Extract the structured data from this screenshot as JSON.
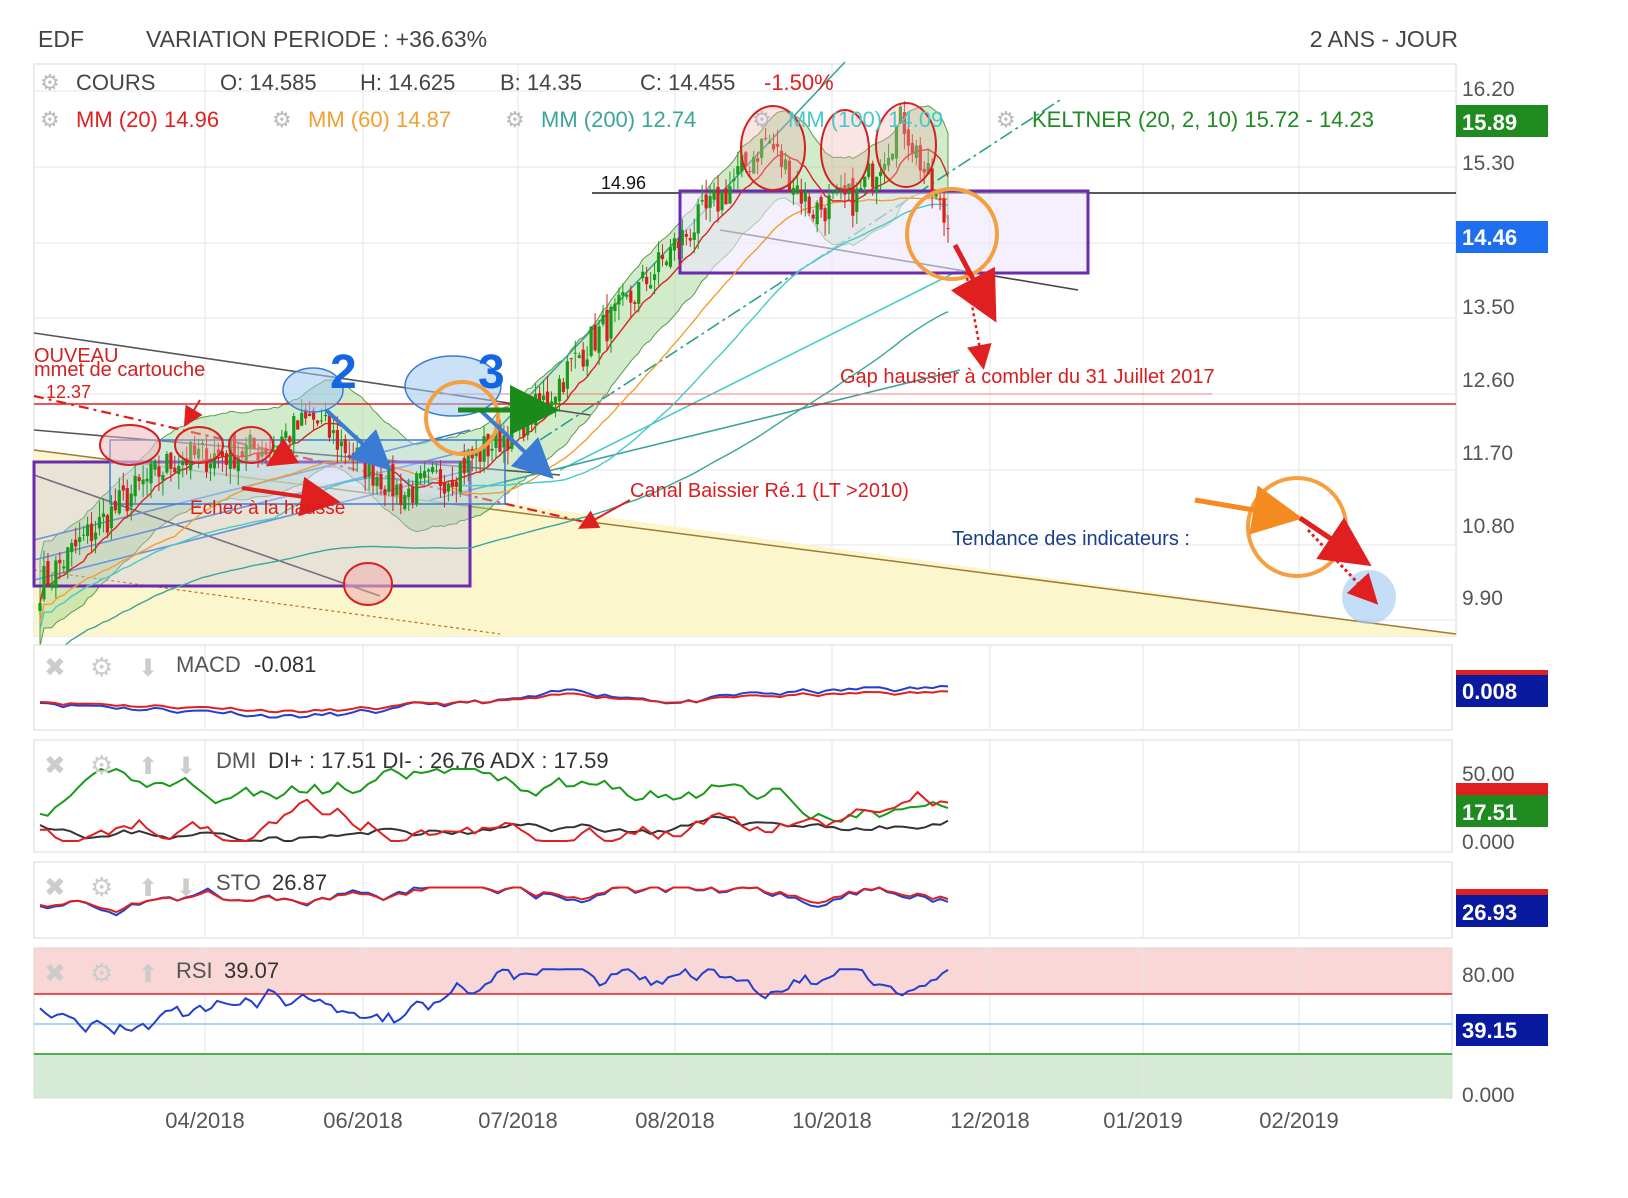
{
  "header": {
    "symbol": "EDF",
    "variation": "VARIATION PERIODE : +36.63%",
    "period": "2 ANS - JOUR"
  },
  "legend": {
    "cours_label": "COURS",
    "open": "O: 14.585",
    "high": "H: 14.625",
    "low": "B: 14.35",
    "close": "C: 14.455",
    "change": "-1.50%",
    "mm20": "MM (20)  14.96",
    "mm60": "MM (60)  14.87",
    "mm200": "MM (200)  12.74",
    "mm100": "MM (100)  14.09",
    "keltner": "KELTNER (20, 2, 10)  15.72 - 14.23"
  },
  "colors": {
    "up": "#1a9a1a",
    "down": "#d62020",
    "mm20": "#e02020",
    "mm60": "#f0a030",
    "mm200": "#3aa59a",
    "mm100": "#49c8c8",
    "keltner": "#2d8a2d",
    "grid": "#e4e4e4",
    "purple_box": "#6a2bb0",
    "blue_badge": "#1565e0",
    "navy_badge": "#0a1aa0",
    "green_badge": "#1f8a1f"
  },
  "annotations": {
    "line_1496": "14.96",
    "gap": "Gap haussier à combler du 31 Juillet 2017",
    "canal": "Canal Baissier Ré.1 (LT >2010)",
    "tendance": "Tendance des indicateurs :",
    "echec": "Echec à la hausse",
    "nouveau": "OUVEAU",
    "cartouche": "mmet de cartouche",
    "v1237": "12.37",
    "n2": "2",
    "n3": "3"
  },
  "price_axis": {
    "ticks": [
      "16.20",
      "15.30",
      "13.50",
      "12.60",
      "11.70",
      "10.80",
      "9.90"
    ],
    "badge_high": "15.89",
    "badge_last": "14.46"
  },
  "x_axis": {
    "labels": [
      "04/2018",
      "06/2018",
      "07/2018",
      "08/2018",
      "10/2018",
      "12/2018",
      "01/2019",
      "02/2019"
    ]
  },
  "indicators": {
    "macd": {
      "label": "MACD",
      "value": "-0.081",
      "badge": "0.008"
    },
    "dmi": {
      "label": "DMI",
      "value": "DI+ : 17.51 DI- : 26.76 ADX : 17.59",
      "tick": "50.00",
      "tick0": "0.000",
      "badge": "17.51"
    },
    "sto": {
      "label": "STO",
      "value": "26.87",
      "badge": "26.93"
    },
    "rsi": {
      "label": "RSI",
      "value": "39.07",
      "tick80": "80.00",
      "tick0": "0.000",
      "badge": "39.15"
    }
  },
  "chart_data": {
    "type": "candlestick",
    "title": "EDF",
    "period": "2 ANS - JOUR",
    "ylim": [
      9.5,
      16.4
    ],
    "x_range": [
      "2018-02",
      "2019-03"
    ],
    "series_close": {
      "dates": [
        "2018-02-05",
        "2018-02-20",
        "2018-03-05",
        "2018-03-20",
        "2018-04-05",
        "2018-04-20",
        "2018-05-05",
        "2018-05-20",
        "2018-06-05",
        "2018-06-20",
        "2018-07-05",
        "2018-07-20",
        "2018-08-05",
        "2018-08-20",
        "2018-09-05",
        "2018-09-20",
        "2018-10-05",
        "2018-10-20",
        "2018-11-05",
        "2018-11-15",
        "2018-11-22"
      ],
      "values": [
        9.95,
        10.55,
        11.1,
        11.55,
        11.6,
        11.7,
        12.05,
        11.55,
        11.1,
        11.35,
        11.75,
        12.2,
        12.95,
        13.55,
        14.25,
        14.85,
        15.6,
        14.7,
        14.85,
        15.85,
        14.46
      ]
    },
    "last": {
      "open": 14.585,
      "high": 14.625,
      "low": 14.35,
      "close": 14.455,
      "change_pct": -1.5
    },
    "moving_averages": {
      "MM20": 14.96,
      "MM60": 14.87,
      "MM200": 12.74,
      "MM100": 14.09
    },
    "keltner": {
      "upper": 15.72,
      "lower": 14.23
    },
    "levels": {
      "resistance": 14.96,
      "gap": 12.37
    },
    "indicators": {
      "MACD": -0.081,
      "DMI": {
        "DI_plus": 17.51,
        "DI_minus": 26.76,
        "ADX": 17.59
      },
      "STO": 26.87,
      "RSI": 39.07
    }
  }
}
